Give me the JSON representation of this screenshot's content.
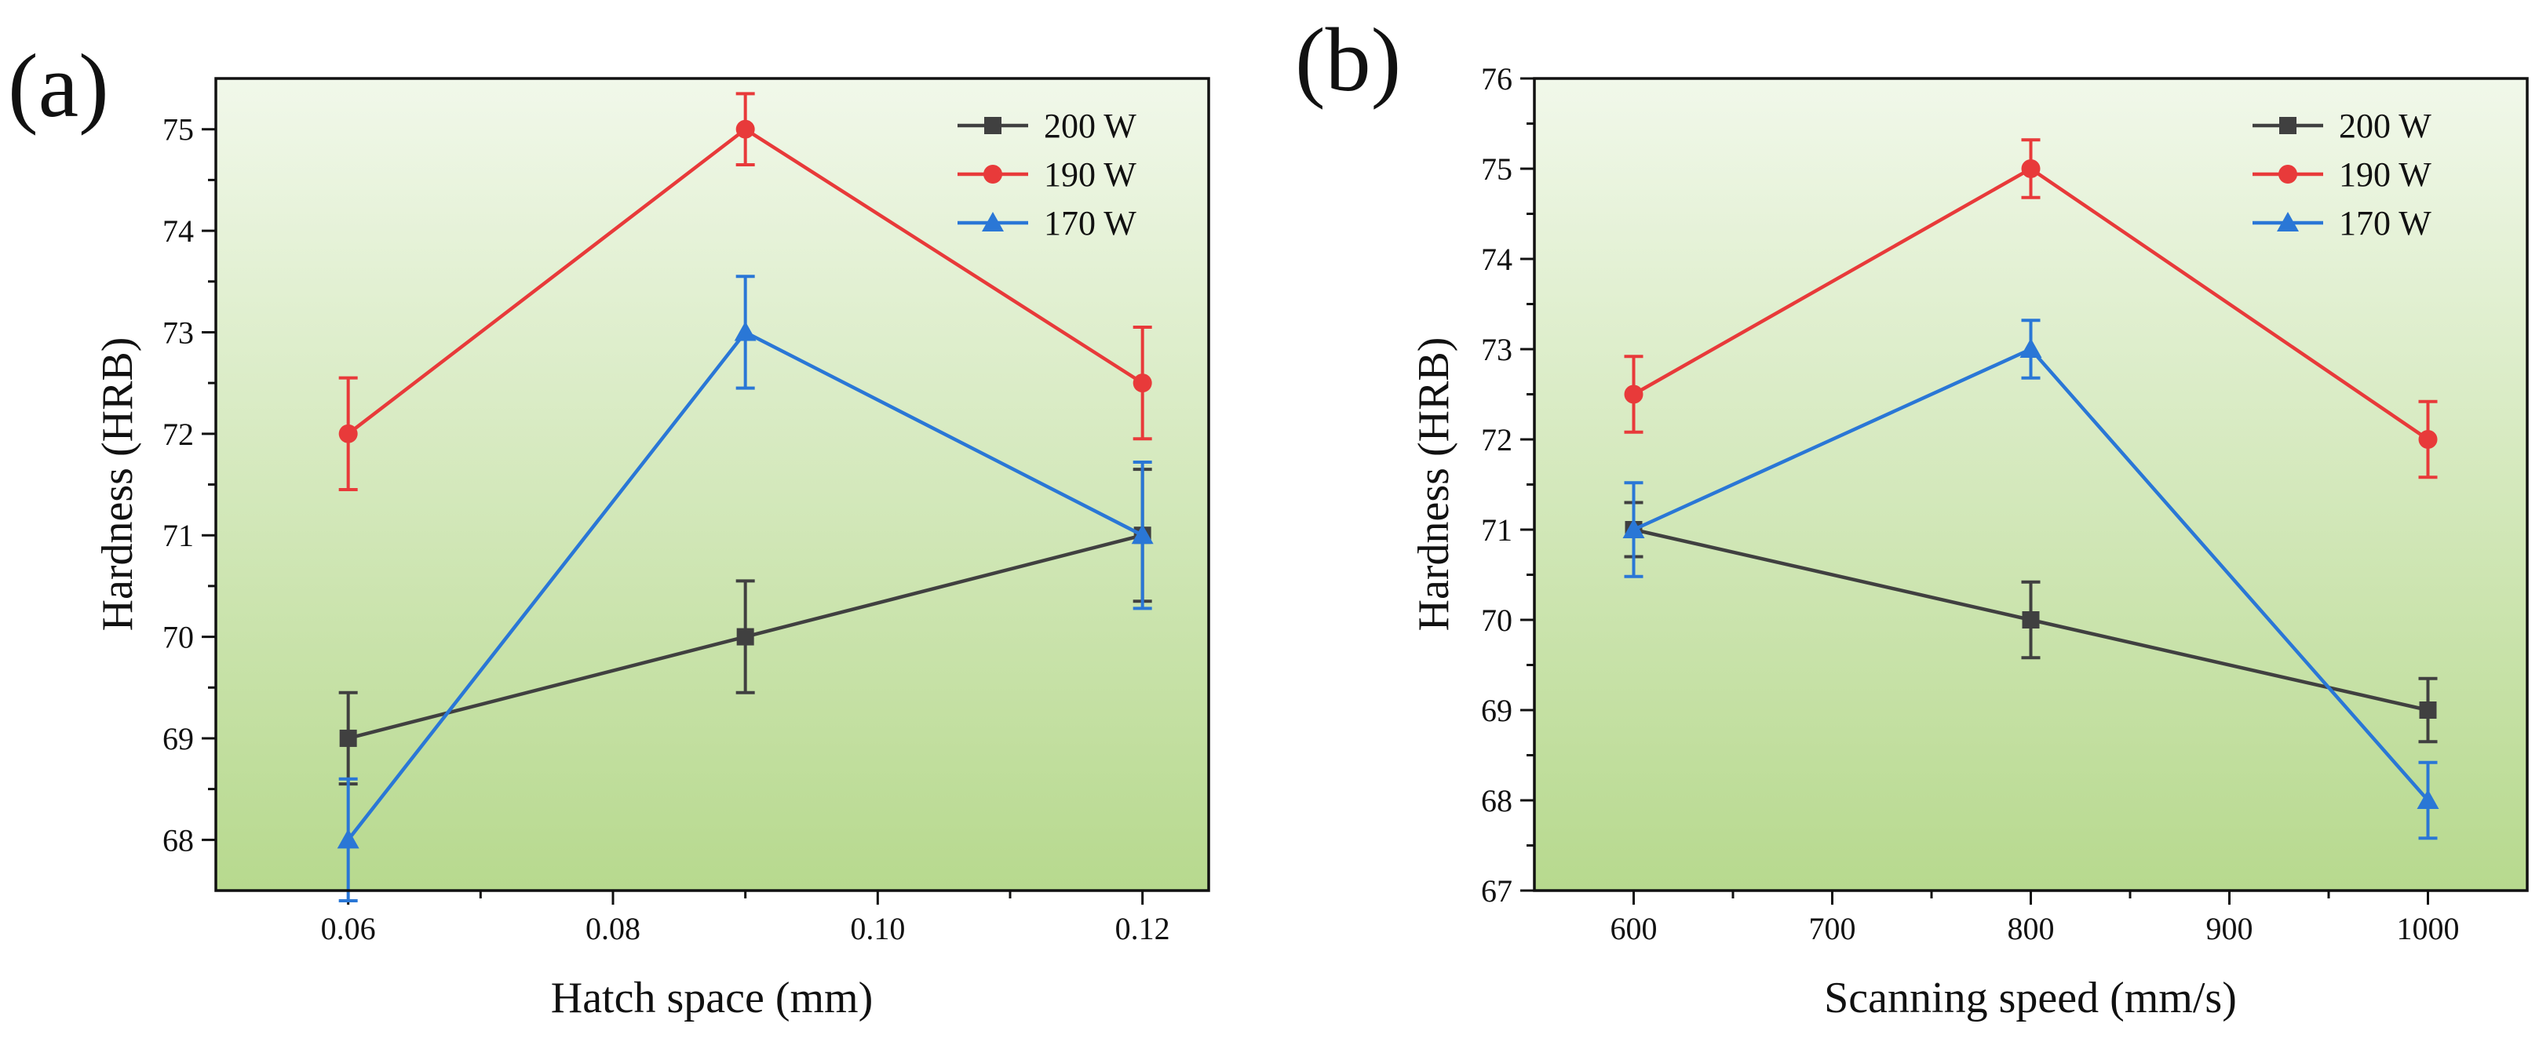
{
  "chart_data": [
    {
      "type": "line",
      "panel_label": "(a)",
      "xlabel": "Hatch space (mm)",
      "ylabel": "Hardness (HRB)",
      "x": [
        0.06,
        0.09,
        0.12
      ],
      "xlim": [
        0.05,
        0.125
      ],
      "ylim": [
        67.5,
        75.5
      ],
      "xticks": [
        0.06,
        0.08,
        0.1,
        0.12
      ],
      "xtick_labels": [
        "0.06",
        "0.08",
        "0.10",
        "0.12"
      ],
      "yticks": [
        68,
        69,
        70,
        71,
        72,
        73,
        74,
        75
      ],
      "ytick_labels": [
        "68",
        "69",
        "70",
        "71",
        "72",
        "73",
        "74",
        "75"
      ],
      "legend_position": "top-right",
      "series": [
        {
          "name": "200 W",
          "color": "#404040",
          "marker": "square",
          "values": [
            69,
            70,
            71
          ],
          "errors": [
            0.45,
            0.55,
            0.65
          ]
        },
        {
          "name": "190 W",
          "color": "#e83a3a",
          "marker": "circle",
          "values": [
            72,
            75,
            72.5
          ],
          "errors": [
            0.55,
            0.35,
            0.55
          ]
        },
        {
          "name": "170 W",
          "color": "#2a77d6",
          "marker": "triangle",
          "values": [
            68,
            73,
            71
          ],
          "errors": [
            0.6,
            0.55,
            0.72
          ]
        }
      ]
    },
    {
      "type": "line",
      "panel_label": "(b)",
      "xlabel": "Scanning speed (mm/s)",
      "ylabel": "Hardness (HRB)",
      "x": [
        600,
        800,
        1000
      ],
      "xlim": [
        550,
        1050
      ],
      "ylim": [
        67,
        76
      ],
      "xticks": [
        600,
        700,
        800,
        900,
        1000
      ],
      "xtick_labels": [
        "600",
        "700",
        "800",
        "900",
        "1000"
      ],
      "yticks": [
        67,
        68,
        69,
        70,
        71,
        72,
        73,
        74,
        75,
        76
      ],
      "ytick_labels": [
        "67",
        "68",
        "69",
        "70",
        "71",
        "72",
        "73",
        "74",
        "75",
        "76"
      ],
      "legend_position": "top-right",
      "series": [
        {
          "name": "200 W",
          "color": "#404040",
          "marker": "square",
          "values": [
            71,
            70,
            69
          ],
          "errors": [
            0.3,
            0.42,
            0.35
          ]
        },
        {
          "name": "190 W",
          "color": "#e83a3a",
          "marker": "circle",
          "values": [
            72.5,
            75,
            72
          ],
          "errors": [
            0.42,
            0.32,
            0.42
          ]
        },
        {
          "name": "170 W",
          "color": "#2a77d6",
          "marker": "triangle",
          "values": [
            71,
            73,
            68
          ],
          "errors": [
            0.52,
            0.32,
            0.42
          ]
        }
      ]
    }
  ]
}
